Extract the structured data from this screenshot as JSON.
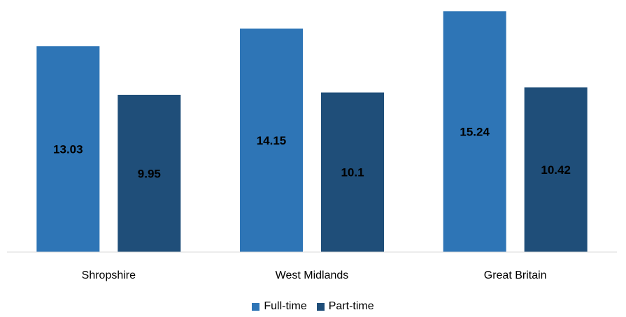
{
  "chart_data": {
    "type": "bar",
    "categories": [
      "Shropshire",
      "West Midlands",
      "Great Britain"
    ],
    "series": [
      {
        "name": "Full-time",
        "values": [
          13.03,
          14.15,
          15.24
        ],
        "color": "#2E75B6"
      },
      {
        "name": "Part-time",
        "values": [
          9.95,
          10.1,
          10.42
        ],
        "color": "#1F4E79"
      }
    ],
    "data_labels": [
      [
        "13.03",
        "14.15",
        "15.24"
      ],
      [
        "9.95",
        "10.1",
        "10.42"
      ]
    ],
    "title": "",
    "xlabel": "",
    "ylabel": "",
    "ylim": [
      0,
      16
    ],
    "grid": false,
    "legend_position": "bottom"
  }
}
